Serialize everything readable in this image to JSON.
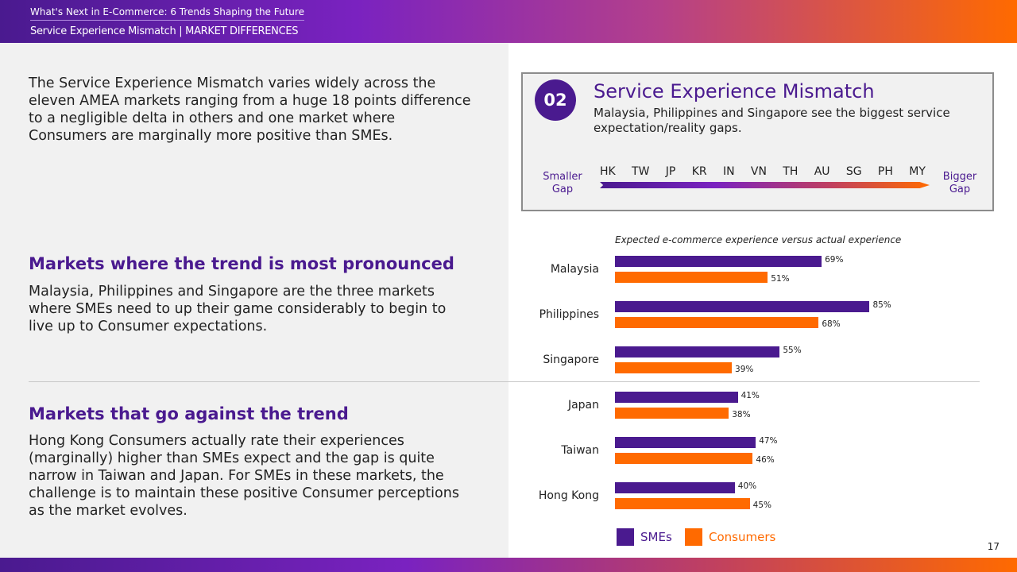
{
  "header": {
    "title": "What's Next in E-Commerce: 6 Trends Shaping the Future",
    "subtitle": "Service Experience Mismatch | MARKET DIFFERENCES"
  },
  "left": {
    "intro": "The Service Experience Mismatch varies widely across the eleven AMEA markets ranging from a huge 18 points difference to a negligible delta in others and one market where Consumers are marginally more positive than SMEs.",
    "section1_heading": "Markets where the trend is most pronounced",
    "section1_text": "Malaysia, Philippines and Singapore are the three markets where SMEs need to up their game considerably to begin to live up to Consumer expectations.",
    "section2_heading": "Markets that go against the trend",
    "section2_text": "Hong Kong Consumers actually rate their experiences (marginally) higher than SMEs  expect and the gap is quite narrow in Taiwan and Japan. For SMEs in these markets, the challenge is to maintain these positive Consumer perceptions as the market evolves."
  },
  "box": {
    "badge": "02",
    "title": "Service Experience Mismatch",
    "subtitle": "Malaysia, Philippines and Singapore see the biggest service expectation/reality gaps.",
    "smaller_gap": "Smaller Gap",
    "bigger_gap": "Bigger Gap",
    "codes": [
      "HK",
      "TW",
      "JP",
      "KR",
      "IN",
      "VN",
      "TH",
      "AU",
      "SG",
      "PH",
      "MY"
    ]
  },
  "chart_data": {
    "type": "bar",
    "orientation": "horizontal",
    "title": "Expected e-commerce experience versus actual experience",
    "categories": [
      "Malaysia",
      "Philippines",
      "Singapore",
      "Japan",
      "Taiwan",
      "Hong Kong"
    ],
    "series": [
      {
        "name": "SMEs",
        "color": "#4a1a8f",
        "values": [
          69,
          85,
          55,
          41,
          47,
          40
        ]
      },
      {
        "name": "Consumers",
        "color": "#ff6a00",
        "values": [
          51,
          68,
          39,
          38,
          46,
          45
        ]
      }
    ],
    "unit": "%",
    "legend": "bottom"
  },
  "page_number": "17"
}
